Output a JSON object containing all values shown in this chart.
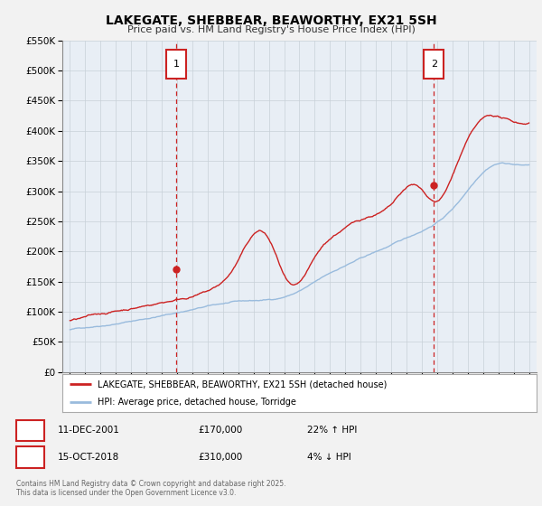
{
  "title": "LAKEGATE, SHEBBEAR, BEAWORTHY, EX21 5SH",
  "subtitle": "Price paid vs. HM Land Registry's House Price Index (HPI)",
  "bg_color": "#f2f2f2",
  "plot_bg_color": "#e8eef5",
  "grid_color": "#c8d0d8",
  "red_color": "#cc2222",
  "blue_color": "#99bbdd",
  "marker1_x": 2001.95,
  "marker1_y": 170000,
  "marker2_x": 2018.79,
  "marker2_y": 310000,
  "legend1": "LAKEGATE, SHEBBEAR, BEAWORTHY, EX21 5SH (detached house)",
  "legend2": "HPI: Average price, detached house, Torridge",
  "label1_date": "11-DEC-2001",
  "label1_price": "£170,000",
  "label1_hpi": "22% ↑ HPI",
  "label2_date": "15-OCT-2018",
  "label2_price": "£310,000",
  "label2_hpi": "4% ↓ HPI",
  "footer": "Contains HM Land Registry data © Crown copyright and database right 2025.\nThis data is licensed under the Open Government Licence v3.0.",
  "ylim": [
    0,
    550000
  ],
  "xlim": [
    1994.5,
    2025.5
  ],
  "yticks": [
    0,
    50000,
    100000,
    150000,
    200000,
    250000,
    300000,
    350000,
    400000,
    450000,
    500000,
    550000
  ]
}
